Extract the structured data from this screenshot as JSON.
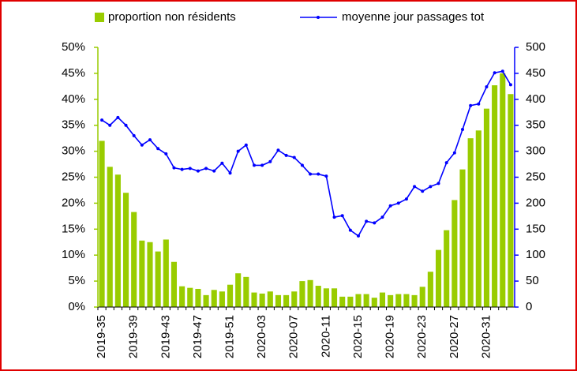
{
  "chart_data": {
    "type": "bar-line",
    "categories": [
      "2019-35",
      null,
      null,
      null,
      "2019-39",
      null,
      null,
      null,
      "2019-43",
      null,
      null,
      null,
      "2019-47",
      null,
      null,
      null,
      "2019-51",
      null,
      null,
      null,
      "2020-03",
      null,
      null,
      null,
      "2020-07",
      null,
      null,
      null,
      "2020-11",
      null,
      null,
      null,
      "2020-15",
      null,
      null,
      null,
      "2020-19",
      null,
      null,
      null,
      "2020-23",
      null,
      null,
      null,
      "2020-27",
      null,
      null,
      null,
      "2020-31",
      null,
      null,
      null
    ],
    "series": [
      {
        "name": "proportion non résidents",
        "type": "bar",
        "color": "#99cc00",
        "values": [
          32,
          27,
          25.5,
          22,
          18.3,
          12.8,
          12.5,
          10.7,
          13,
          8.7,
          4,
          3.7,
          3.5,
          2.3,
          3.3,
          3,
          4.3,
          6.5,
          5.8,
          2.8,
          2.6,
          3,
          2.3,
          2.3,
          3,
          5,
          5.2,
          4.1,
          3.6,
          3.6,
          2,
          2,
          2.5,
          2.5,
          1.8,
          2.8,
          2.3,
          2.5,
          2.5,
          2.3,
          3.9,
          6.8,
          11,
          14.8,
          20.6,
          26.5,
          32.5,
          34,
          38.2,
          42.7,
          45,
          41
        ]
      },
      {
        "name": "moyenne jour passages tot",
        "type": "line",
        "axis": "y2",
        "color": "#0000ff",
        "values": [
          360,
          350,
          365,
          350,
          330,
          312,
          322,
          305,
          295,
          268,
          265,
          267,
          262,
          267,
          262,
          277,
          258,
          300,
          312,
          273,
          273,
          280,
          302,
          292,
          288,
          273,
          256,
          256,
          252,
          173,
          176,
          148,
          137,
          165,
          162,
          173,
          195,
          200,
          208,
          232,
          223,
          232,
          238,
          278,
          297,
          342,
          388,
          391,
          424,
          451,
          454,
          428
        ]
      }
    ],
    "ylim": [
      0,
      50
    ],
    "yticks": [
      {
        "value": 0,
        "label": "0%"
      },
      {
        "value": 5,
        "label": "5%"
      },
      {
        "value": 10,
        "label": "10%"
      },
      {
        "value": 15,
        "label": "15%"
      },
      {
        "value": 20,
        "label": "20%"
      },
      {
        "value": 25,
        "label": "25%"
      },
      {
        "value": 30,
        "label": "30%"
      },
      {
        "value": 35,
        "label": "35%"
      },
      {
        "value": 40,
        "label": "40%"
      },
      {
        "value": 45,
        "label": "45%"
      },
      {
        "value": 50,
        "label": "50%"
      }
    ],
    "y2lim": [
      0,
      500
    ],
    "y2ticks": [
      0,
      50,
      100,
      150,
      200,
      250,
      300,
      350,
      400,
      450,
      500
    ],
    "legend": "top"
  }
}
